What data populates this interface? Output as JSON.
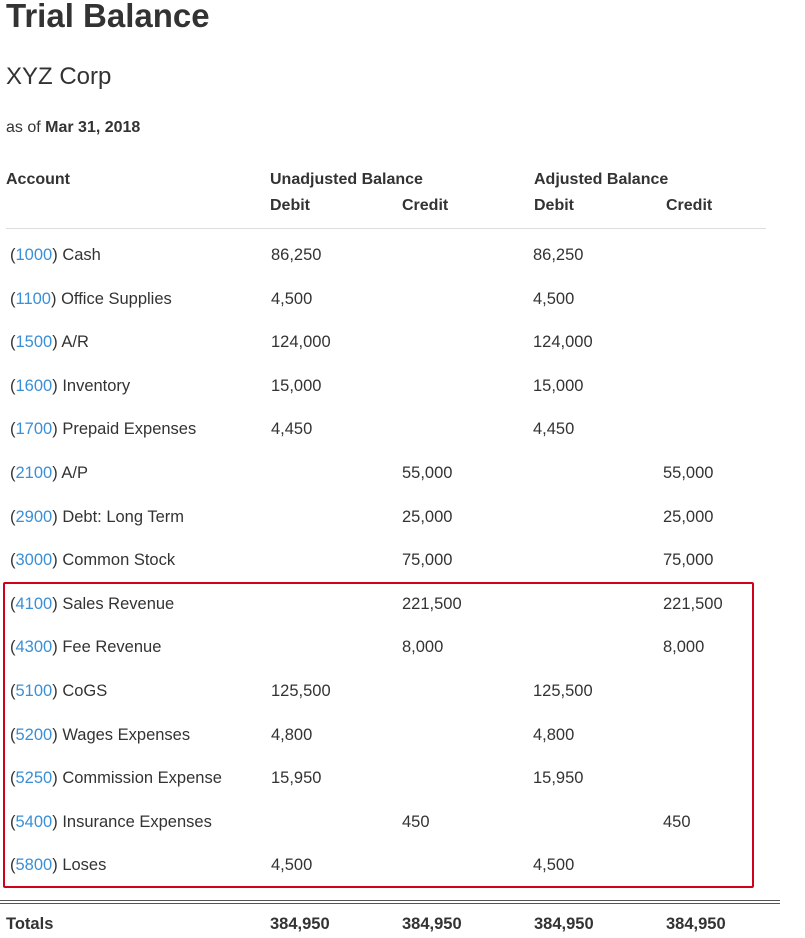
{
  "report": {
    "title": "Trial Balance",
    "company": "XYZ Corp",
    "as_of_label": "as of",
    "as_of_date": "Mar 31, 2018"
  },
  "headers": {
    "account": "Account",
    "unadjusted": "Unadjusted Balance",
    "adjusted": "Adjusted Balance",
    "debit": "Debit",
    "credit": "Credit"
  },
  "rows": [
    {
      "number": "1000",
      "name": "Cash",
      "unadj_debit": "86,250",
      "unadj_credit": "",
      "adj_debit": "86,250",
      "adj_credit": ""
    },
    {
      "number": "1100",
      "name": "Office Supplies",
      "unadj_debit": "4,500",
      "unadj_credit": "",
      "adj_debit": "4,500",
      "adj_credit": ""
    },
    {
      "number": "1500",
      "name": "A/R",
      "unadj_debit": "124,000",
      "unadj_credit": "",
      "adj_debit": "124,000",
      "adj_credit": ""
    },
    {
      "number": "1600",
      "name": "Inventory",
      "unadj_debit": "15,000",
      "unadj_credit": "",
      "adj_debit": "15,000",
      "adj_credit": ""
    },
    {
      "number": "1700",
      "name": "Prepaid Expenses",
      "unadj_debit": "4,450",
      "unadj_credit": "",
      "adj_debit": "4,450",
      "adj_credit": ""
    },
    {
      "number": "2100",
      "name": "A/P",
      "unadj_debit": "",
      "unadj_credit": "55,000",
      "adj_debit": "",
      "adj_credit": "55,000"
    },
    {
      "number": "2900",
      "name": "Debt: Long Term",
      "unadj_debit": "",
      "unadj_credit": "25,000",
      "adj_debit": "",
      "adj_credit": "25,000"
    },
    {
      "number": "3000",
      "name": "Common Stock",
      "unadj_debit": "",
      "unadj_credit": "75,000",
      "adj_debit": "",
      "adj_credit": "75,000"
    },
    {
      "number": "4100",
      "name": "Sales Revenue",
      "unadj_debit": "",
      "unadj_credit": "221,500",
      "adj_debit": "",
      "adj_credit": "221,500"
    },
    {
      "number": "4300",
      "name": "Fee Revenue",
      "unadj_debit": "",
      "unadj_credit": "8,000",
      "adj_debit": "",
      "adj_credit": "8,000"
    },
    {
      "number": "5100",
      "name": "CoGS",
      "unadj_debit": "125,500",
      "unadj_credit": "",
      "adj_debit": "125,500",
      "adj_credit": ""
    },
    {
      "number": "5200",
      "name": "Wages Expenses",
      "unadj_debit": "4,800",
      "unadj_credit": "",
      "adj_debit": "4,800",
      "adj_credit": ""
    },
    {
      "number": "5250",
      "name": "Commission Expense",
      "unadj_debit": "15,950",
      "unadj_credit": "",
      "adj_debit": "15,950",
      "adj_credit": ""
    },
    {
      "number": "5400",
      "name": "Insurance Expenses",
      "unadj_debit": "",
      "unadj_credit": "450",
      "adj_debit": "",
      "adj_credit": "450"
    },
    {
      "number": "5800",
      "name": "Loses",
      "unadj_debit": "4,500",
      "unadj_credit": "",
      "adj_debit": "4,500",
      "adj_credit": ""
    }
  ],
  "totals": {
    "label": "Totals",
    "unadj_debit": "384,950",
    "unadj_credit": "384,950",
    "adj_debit": "384,950",
    "adj_credit": "384,950"
  },
  "colors": {
    "account_link": "#3a8fd6",
    "highlight_border": "#d0021b",
    "text": "#333333"
  }
}
